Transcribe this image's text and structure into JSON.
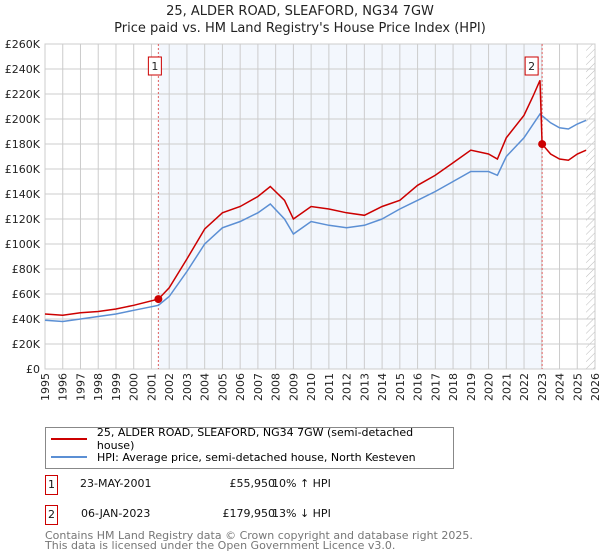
{
  "chart_data": {
    "type": "line",
    "title": "25, ALDER ROAD, SLEAFORD, NG34 7GW",
    "subtitle": "Price paid vs. HM Land Registry's House Price Index (HPI)",
    "xlim": [
      1995,
      2026
    ],
    "ylim": [
      0,
      260000
    ],
    "x_ticks": [
      "1995",
      "1996",
      "1997",
      "1998",
      "1999",
      "2000",
      "2001",
      "2002",
      "2003",
      "2004",
      "2005",
      "2006",
      "2007",
      "2008",
      "2009",
      "2010",
      "2011",
      "2012",
      "2013",
      "2014",
      "2015",
      "2016",
      "2017",
      "2018",
      "2019",
      "2020",
      "2021",
      "2022",
      "2023",
      "2024",
      "2025",
      "2026"
    ],
    "y_ticks": [
      "£0",
      "£20K",
      "£40K",
      "£60K",
      "£80K",
      "£100K",
      "£120K",
      "£140K",
      "£160K",
      "£180K",
      "£200K",
      "£220K",
      "£240K",
      "£260K"
    ],
    "grid": true,
    "series": [
      {
        "name": "25, ALDER ROAD, SLEAFORD, NG34 7GW (semi-detached house)",
        "color": "#cc0000",
        "x": [
          1995,
          1996,
          1997,
          1998,
          1999,
          2000,
          2001.39,
          2002,
          2003,
          2004,
          2005,
          2006,
          2007,
          2007.7,
          2008.5,
          2009,
          2009.5,
          2010,
          2011,
          2012,
          2013,
          2014,
          2015,
          2016,
          2017,
          2018,
          2019,
          2020,
          2020.5,
          2021,
          2022,
          2022.5,
          2022.9,
          2023.02,
          2023.5,
          2024,
          2024.5,
          2025,
          2025.5
        ],
        "values": [
          44000,
          43000,
          45000,
          46000,
          48000,
          51000,
          55950,
          65000,
          88000,
          112000,
          125000,
          130000,
          138000,
          146000,
          135000,
          120000,
          125000,
          130000,
          128000,
          125000,
          123000,
          130000,
          135000,
          147000,
          155000,
          165000,
          175000,
          172000,
          168000,
          185000,
          203000,
          218000,
          231000,
          179950,
          172000,
          168000,
          167000,
          172000,
          175000
        ]
      },
      {
        "name": "HPI: Average price, semi-detached house, North Kesteven",
        "color": "#5b8fd4",
        "x": [
          1995,
          1996,
          1997,
          1998,
          1999,
          2000,
          2001.39,
          2002,
          2003,
          2004,
          2005,
          2006,
          2007,
          2007.7,
          2008.5,
          2009,
          2009.5,
          2010,
          2011,
          2012,
          2013,
          2014,
          2015,
          2016,
          2017,
          2018,
          2019,
          2020,
          2020.5,
          2021,
          2022,
          2022.9,
          2023.5,
          2024,
          2024.5,
          2025,
          2025.5
        ],
        "values": [
          39000,
          38000,
          40000,
          42000,
          44000,
          47000,
          51000,
          58000,
          78000,
          100000,
          113000,
          118000,
          125000,
          132000,
          120000,
          108000,
          113000,
          118000,
          115000,
          113000,
          115000,
          120000,
          128000,
          135000,
          142000,
          150000,
          158000,
          158000,
          155000,
          170000,
          185000,
          204000,
          197000,
          193000,
          192000,
          196000,
          199000
        ]
      }
    ],
    "annotations": [
      {
        "label": "1",
        "x": 2001.39,
        "value": 55950
      },
      {
        "label": "2",
        "x": 2023.02,
        "value": 179950
      }
    ],
    "shaded_between": [
      2001.39,
      2023.02
    ],
    "hatched_from": 2025.5
  },
  "sales": [
    {
      "num": "1",
      "date": "23-MAY-2001",
      "price": "£55,950",
      "hpi": "10% ↑ HPI"
    },
    {
      "num": "2",
      "date": "06-JAN-2023",
      "price": "£179,950",
      "hpi": "13% ↓ HPI"
    }
  ],
  "footer": {
    "line1": "Contains HM Land Registry data © Crown copyright and database right 2025.",
    "line2": "This data is licensed under the Open Government Licence v3.0."
  }
}
